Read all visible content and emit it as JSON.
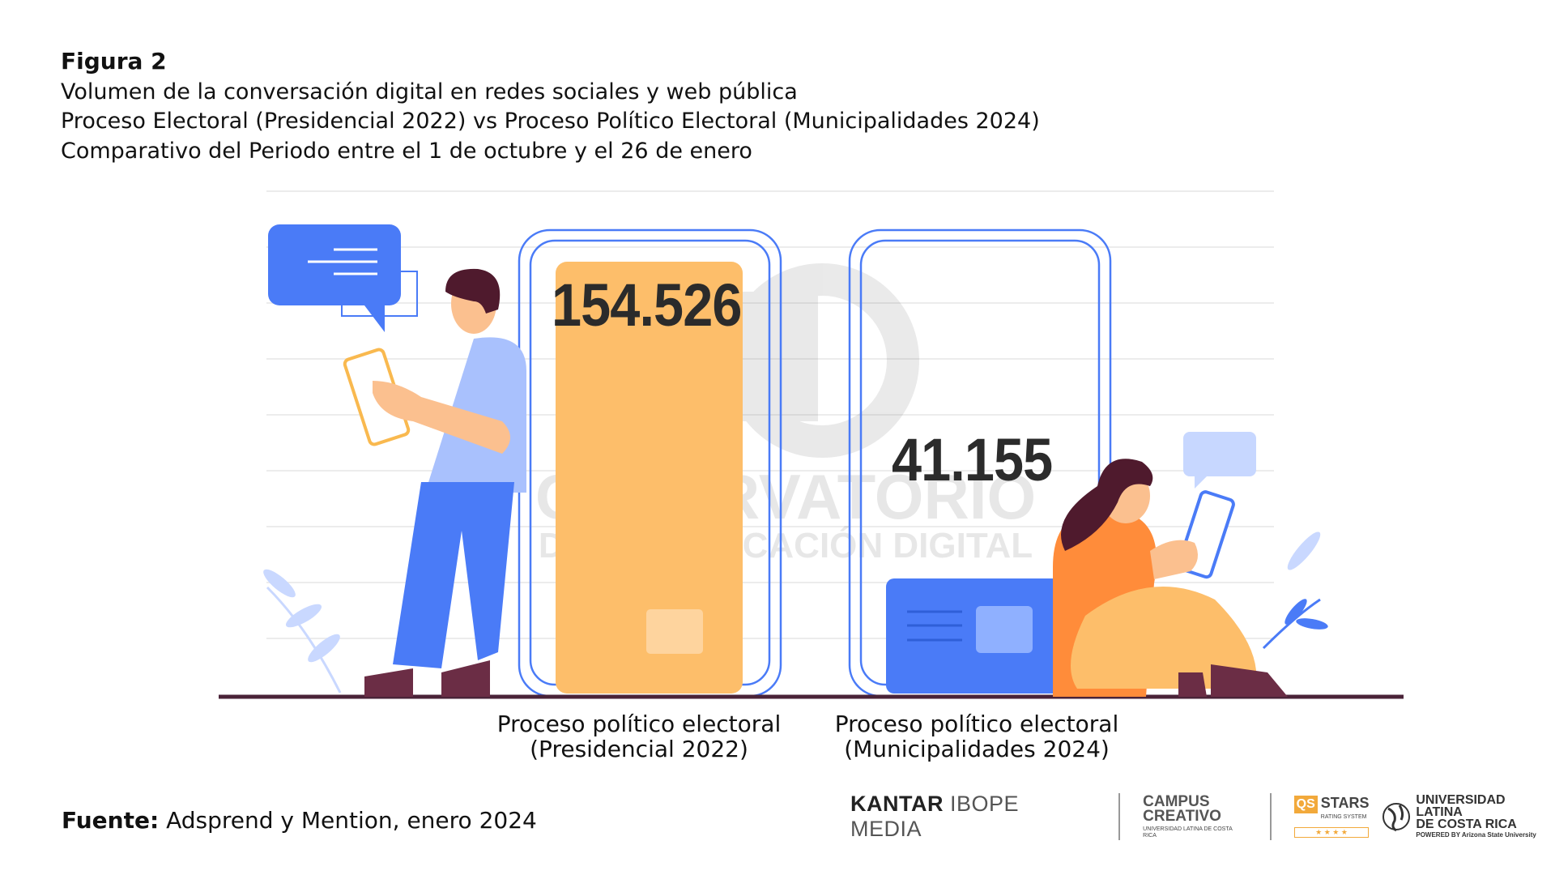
{
  "header": {
    "figure_label": "Figura 2",
    "lines": [
      "Volumen de la conversación digital en redes sociales y web pública",
      "Proceso Electoral (Presidencial 2022) vs Proceso Político Electoral (Municipalidades 2024)",
      "Comparativo del Periodo entre el 1 de octubre y el 26 de enero"
    ]
  },
  "chart_data": {
    "type": "bar",
    "categories": [
      [
        "Proceso político electoral",
        "(Presidencial 2022)"
      ],
      [
        "Proceso político electoral",
        "(Municipalidades 2024)"
      ]
    ],
    "values": [
      154526,
      41155
    ],
    "value_labels": [
      "154.526",
      "41.155"
    ],
    "colors": [
      "#FDBE6A",
      "#4A7BF7"
    ],
    "grid": true
  },
  "watermark": {
    "line1": "OBSERVATORIO",
    "line2": "DE COMUNICACIÓN DIGITAL"
  },
  "source": {
    "label": "Fuente:",
    "text": "Adsprend y Mention, enero 2024"
  },
  "logos": {
    "kantar": {
      "bold": "KANTAR",
      "rest": "IBOPE MEDIA"
    },
    "campus": {
      "name1": "CAMPUS",
      "name2": "CREATIVO",
      "sub": "UNIVERSIDAD LATINA DE COSTA RICA"
    },
    "qs": {
      "box": "QS",
      "name": "STARS",
      "sub": "RATING SYSTEM",
      "rating": "★ ★ ★ ★"
    },
    "ulatina": {
      "line1": "UNIVERSIDAD LATINA",
      "line2": "DE COSTA RICA",
      "sub": "POWERED BY Arizona State University"
    }
  }
}
